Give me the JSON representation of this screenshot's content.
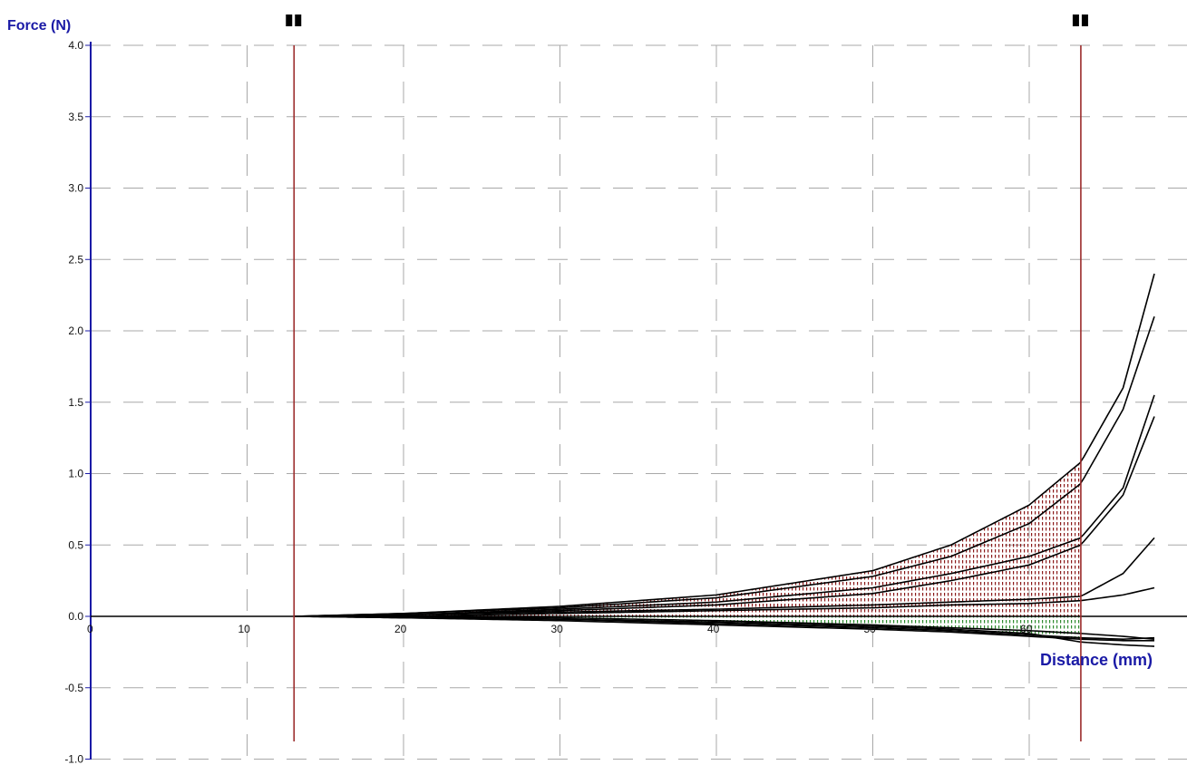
{
  "chart_data": {
    "type": "line",
    "title": "",
    "ylabel": "Force (N)",
    "xlabel": "Distance (mm)",
    "xlim": [
      0,
      68
    ],
    "ylim": [
      -1.0,
      4.0
    ],
    "x_ticks": [
      0,
      10,
      20,
      30,
      40,
      50,
      60
    ],
    "x_tick_labels": [
      "0",
      "10",
      "20",
      "30",
      "40",
      "50",
      "60"
    ],
    "y_ticks": [
      -1.0,
      -0.5,
      0.0,
      0.5,
      1.0,
      1.5,
      2.0,
      2.5,
      3.0,
      3.5,
      4.0
    ],
    "y_tick_labels": [
      "-1.0",
      "-0.5",
      "0.0",
      "0.5",
      "1.0",
      "1.5",
      "2.0",
      "2.5",
      "3.0",
      "3.5",
      "4.0"
    ],
    "grid": true,
    "markers": [
      {
        "x": 13
      },
      {
        "x": 63.3
      }
    ],
    "shaded_region": {
      "x_start": 13,
      "x_end": 63.3
    },
    "series": [
      {
        "x": [
          13,
          20,
          30,
          40,
          50,
          55,
          60,
          63.3,
          66,
          68
        ],
        "y": [
          0,
          0.02,
          0.07,
          0.15,
          0.32,
          0.5,
          0.78,
          1.08,
          1.6,
          2.4
        ]
      },
      {
        "x": [
          13,
          20,
          30,
          40,
          50,
          55,
          60,
          63.3,
          66,
          68
        ],
        "y": [
          0,
          0.02,
          0.06,
          0.13,
          0.28,
          0.42,
          0.65,
          0.93,
          1.45,
          2.1
        ]
      },
      {
        "x": [
          13,
          20,
          30,
          40,
          50,
          55,
          60,
          63.3,
          66,
          68
        ],
        "y": [
          0,
          0.01,
          0.05,
          0.1,
          0.2,
          0.3,
          0.42,
          0.55,
          0.9,
          1.55
        ]
      },
      {
        "x": [
          13,
          20,
          30,
          40,
          50,
          55,
          60,
          63.3,
          66,
          68
        ],
        "y": [
          0,
          0.01,
          0.04,
          0.08,
          0.16,
          0.25,
          0.36,
          0.5,
          0.85,
          1.4
        ]
      },
      {
        "x": [
          13,
          20,
          30,
          40,
          50,
          55,
          60,
          63.3,
          66,
          68
        ],
        "y": [
          0,
          0.01,
          0.03,
          0.05,
          0.08,
          0.1,
          0.12,
          0.14,
          0.3,
          0.55
        ]
      },
      {
        "x": [
          13,
          20,
          30,
          40,
          50,
          55,
          60,
          63.3,
          66,
          68
        ],
        "y": [
          0,
          0.0,
          0.02,
          0.04,
          0.06,
          0.08,
          0.09,
          0.11,
          0.15,
          0.2
        ]
      },
      {
        "x": [
          13,
          20,
          30,
          40,
          50,
          55,
          60,
          63.3,
          66,
          68
        ],
        "y": [
          0,
          -0.01,
          -0.03,
          -0.06,
          -0.09,
          -0.11,
          -0.14,
          -0.16,
          -0.17,
          -0.17
        ]
      },
      {
        "x": [
          13,
          20,
          30,
          40,
          50,
          55,
          60,
          63.3,
          66,
          68
        ],
        "y": [
          0,
          -0.01,
          -0.02,
          -0.05,
          -0.08,
          -0.1,
          -0.13,
          -0.15,
          -0.16,
          -0.15
        ]
      },
      {
        "x": [
          13,
          20,
          30,
          40,
          50,
          55,
          60,
          63.3,
          66,
          68
        ],
        "y": [
          0,
          0.0,
          -0.02,
          -0.04,
          -0.07,
          -0.09,
          -0.12,
          -0.18,
          -0.2,
          -0.21
        ]
      },
      {
        "x": [
          13,
          20,
          30,
          40,
          50,
          55,
          60,
          63.3,
          66,
          68
        ],
        "y": [
          0,
          0.0,
          -0.01,
          -0.03,
          -0.06,
          -0.08,
          -0.1,
          -0.12,
          -0.14,
          -0.16
        ]
      }
    ],
    "colors": {
      "axis": "#1a1aa6",
      "label": "#1a1aa6",
      "grid": "#a8a8a8",
      "series": "#000000",
      "marker_line": "#9b2b2b",
      "marker_handle": "#000000",
      "shade": "#8b1a1a",
      "shade_below": "#2e8b2e"
    }
  }
}
